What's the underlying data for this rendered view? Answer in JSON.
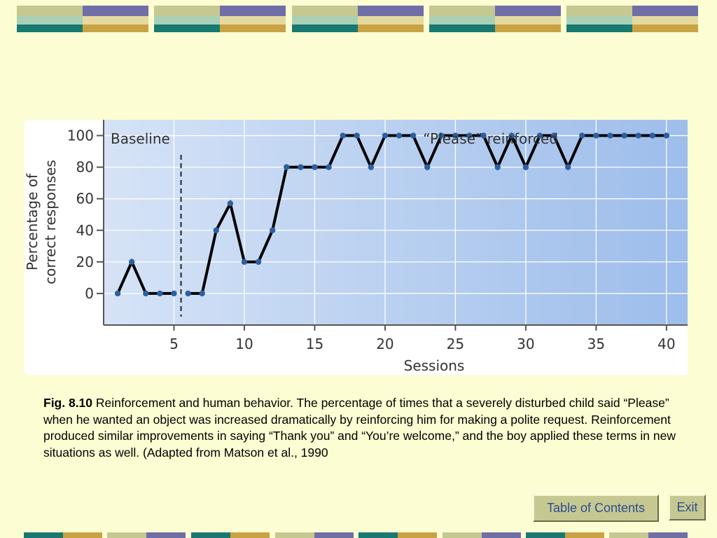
{
  "chart_data": {
    "type": "line",
    "xlabel": "Sessions",
    "ylabel": "Percentage of correct responses",
    "ylabel_lines": [
      "Percentage of",
      "correct responses"
    ],
    "xlim": [
      0,
      41.5
    ],
    "ylim": [
      -20,
      110
    ],
    "x_ticks": [
      5,
      10,
      15,
      20,
      25,
      30,
      35,
      40
    ],
    "y_ticks": [
      0,
      20,
      40,
      60,
      80,
      100
    ],
    "phase_line_x": 5.5,
    "phases": [
      {
        "label": "Baseline",
        "sessions": [
          1,
          5
        ]
      },
      {
        "label": "“Please” reinforced",
        "sessions": [
          6,
          40
        ]
      }
    ],
    "grid": true,
    "series": [
      {
        "name": "Baseline",
        "x": [
          1,
          2,
          3,
          4,
          5
        ],
        "y": [
          0,
          20,
          0,
          0,
          0
        ]
      },
      {
        "name": "Please reinforced",
        "x": [
          6,
          7,
          8,
          9,
          10,
          11,
          12,
          13,
          14,
          15,
          16,
          17,
          18,
          19,
          20,
          21,
          22,
          23,
          24,
          25,
          26,
          27,
          28,
          29,
          30,
          31,
          32,
          33,
          34,
          35,
          36,
          37,
          38,
          39,
          40
        ],
        "y": [
          0,
          0,
          40,
          57,
          20,
          20,
          40,
          80,
          80,
          80,
          80,
          100,
          100,
          80,
          100,
          100,
          100,
          80,
          100,
          100,
          100,
          100,
          80,
          100,
          80,
          100,
          100,
          80,
          100,
          100,
          100,
          100,
          100,
          100,
          100
        ]
      }
    ],
    "colors": {
      "line": "#000000",
      "marker": "#2d5fa0",
      "bg_left": "#d6e3f6",
      "bg_right": "#9dbdeb",
      "grid": "#ffffff"
    }
  },
  "caption": {
    "fig_label": "Fig. 8.10",
    "text": " Reinforcement and human behavior. The percentage of times that a severely disturbed child said “Please” when he wanted an object was increased dramatically by reinforcing him for making a polite request. Reinforcement produced similar improvements in saying “Thank you” and “You’re welcome,” and the boy applied these terms in new situations as well. (Adapted from Matson et al., 1990"
  },
  "buttons": {
    "toc": "Table of Contents",
    "exit": "Exit"
  }
}
